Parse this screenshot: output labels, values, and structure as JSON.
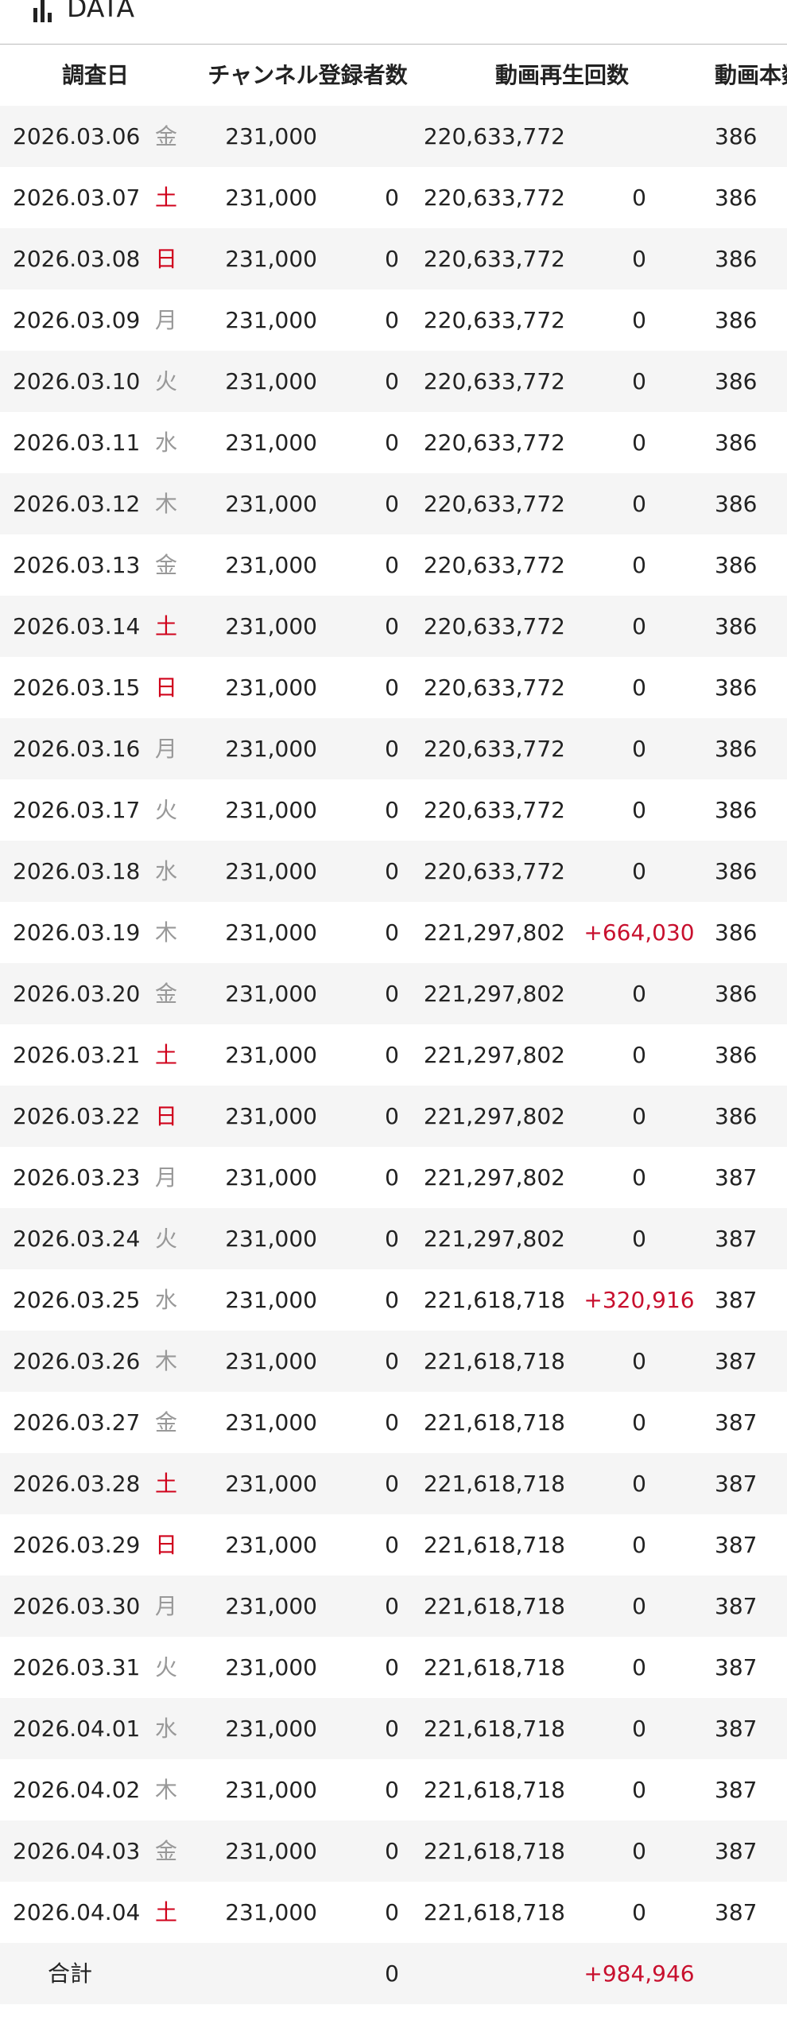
{
  "header": {
    "title": "DATA"
  },
  "table": {
    "columns": [
      "調査日",
      "チャンネル登録者数",
      "動画再生回数",
      "動画本数"
    ],
    "diff_color": "#c8102e",
    "rows": [
      {
        "date": "2026.03.06",
        "weekday": "金",
        "weekday_color": "#999999",
        "subscribers": "231,000",
        "subscribers_diff": null,
        "views": "220,633,772",
        "views_diff": null,
        "videos": "386"
      },
      {
        "date": "2026.03.07",
        "weekday": "土",
        "weekday_color": "#d0021b",
        "subscribers": "231,000",
        "subscribers_diff": "0",
        "views": "220,633,772",
        "views_diff": "0",
        "videos": "386"
      },
      {
        "date": "2026.03.08",
        "weekday": "日",
        "weekday_color": "#d0021b",
        "subscribers": "231,000",
        "subscribers_diff": "0",
        "views": "220,633,772",
        "views_diff": "0",
        "videos": "386"
      },
      {
        "date": "2026.03.09",
        "weekday": "月",
        "weekday_color": "#999999",
        "subscribers": "231,000",
        "subscribers_diff": "0",
        "views": "220,633,772",
        "views_diff": "0",
        "videos": "386"
      },
      {
        "date": "2026.03.10",
        "weekday": "火",
        "weekday_color": "#999999",
        "subscribers": "231,000",
        "subscribers_diff": "0",
        "views": "220,633,772",
        "views_diff": "0",
        "videos": "386"
      },
      {
        "date": "2026.03.11",
        "weekday": "水",
        "weekday_color": "#999999",
        "subscribers": "231,000",
        "subscribers_diff": "0",
        "views": "220,633,772",
        "views_diff": "0",
        "videos": "386"
      },
      {
        "date": "2026.03.12",
        "weekday": "木",
        "weekday_color": "#999999",
        "subscribers": "231,000",
        "subscribers_diff": "0",
        "views": "220,633,772",
        "views_diff": "0",
        "videos": "386"
      },
      {
        "date": "2026.03.13",
        "weekday": "金",
        "weekday_color": "#999999",
        "subscribers": "231,000",
        "subscribers_diff": "0",
        "views": "220,633,772",
        "views_diff": "0",
        "videos": "386"
      },
      {
        "date": "2026.03.14",
        "weekday": "土",
        "weekday_color": "#d0021b",
        "subscribers": "231,000",
        "subscribers_diff": "0",
        "views": "220,633,772",
        "views_diff": "0",
        "videos": "386"
      },
      {
        "date": "2026.03.15",
        "weekday": "日",
        "weekday_color": "#d0021b",
        "subscribers": "231,000",
        "subscribers_diff": "0",
        "views": "220,633,772",
        "views_diff": "0",
        "videos": "386"
      },
      {
        "date": "2026.03.16",
        "weekday": "月",
        "weekday_color": "#999999",
        "subscribers": "231,000",
        "subscribers_diff": "0",
        "views": "220,633,772",
        "views_diff": "0",
        "videos": "386"
      },
      {
        "date": "2026.03.17",
        "weekday": "火",
        "weekday_color": "#999999",
        "subscribers": "231,000",
        "subscribers_diff": "0",
        "views": "220,633,772",
        "views_diff": "0",
        "videos": "386"
      },
      {
        "date": "2026.03.18",
        "weekday": "水",
        "weekday_color": "#999999",
        "subscribers": "231,000",
        "subscribers_diff": "0",
        "views": "220,633,772",
        "views_diff": "0",
        "videos": "386"
      },
      {
        "date": "2026.03.19",
        "weekday": "木",
        "weekday_color": "#999999",
        "subscribers": "231,000",
        "subscribers_diff": "0",
        "views": "221,297,802",
        "views_diff": "+664,030",
        "videos": "386"
      },
      {
        "date": "2026.03.20",
        "weekday": "金",
        "weekday_color": "#999999",
        "subscribers": "231,000",
        "subscribers_diff": "0",
        "views": "221,297,802",
        "views_diff": "0",
        "videos": "386"
      },
      {
        "date": "2026.03.21",
        "weekday": "土",
        "weekday_color": "#d0021b",
        "subscribers": "231,000",
        "subscribers_diff": "0",
        "views": "221,297,802",
        "views_diff": "0",
        "videos": "386"
      },
      {
        "date": "2026.03.22",
        "weekday": "日",
        "weekday_color": "#d0021b",
        "subscribers": "231,000",
        "subscribers_diff": "0",
        "views": "221,297,802",
        "views_diff": "0",
        "videos": "386"
      },
      {
        "date": "2026.03.23",
        "weekday": "月",
        "weekday_color": "#999999",
        "subscribers": "231,000",
        "subscribers_diff": "0",
        "views": "221,297,802",
        "views_diff": "0",
        "videos": "387"
      },
      {
        "date": "2026.03.24",
        "weekday": "火",
        "weekday_color": "#999999",
        "subscribers": "231,000",
        "subscribers_diff": "0",
        "views": "221,297,802",
        "views_diff": "0",
        "videos": "387"
      },
      {
        "date": "2026.03.25",
        "weekday": "水",
        "weekday_color": "#999999",
        "subscribers": "231,000",
        "subscribers_diff": "0",
        "views": "221,618,718",
        "views_diff": "+320,916",
        "videos": "387"
      },
      {
        "date": "2026.03.26",
        "weekday": "木",
        "weekday_color": "#999999",
        "subscribers": "231,000",
        "subscribers_diff": "0",
        "views": "221,618,718",
        "views_diff": "0",
        "videos": "387"
      },
      {
        "date": "2026.03.27",
        "weekday": "金",
        "weekday_color": "#999999",
        "subscribers": "231,000",
        "subscribers_diff": "0",
        "views": "221,618,718",
        "views_diff": "0",
        "videos": "387"
      },
      {
        "date": "2026.03.28",
        "weekday": "土",
        "weekday_color": "#d0021b",
        "subscribers": "231,000",
        "subscribers_diff": "0",
        "views": "221,618,718",
        "views_diff": "0",
        "videos": "387"
      },
      {
        "date": "2026.03.29",
        "weekday": "日",
        "weekday_color": "#d0021b",
        "subscribers": "231,000",
        "subscribers_diff": "0",
        "views": "221,618,718",
        "views_diff": "0",
        "videos": "387"
      },
      {
        "date": "2026.03.30",
        "weekday": "月",
        "weekday_color": "#999999",
        "subscribers": "231,000",
        "subscribers_diff": "0",
        "views": "221,618,718",
        "views_diff": "0",
        "videos": "387"
      },
      {
        "date": "2026.03.31",
        "weekday": "火",
        "weekday_color": "#999999",
        "subscribers": "231,000",
        "subscribers_diff": "0",
        "views": "221,618,718",
        "views_diff": "0",
        "videos": "387"
      },
      {
        "date": "2026.04.01",
        "weekday": "水",
        "weekday_color": "#999999",
        "subscribers": "231,000",
        "subscribers_diff": "0",
        "views": "221,618,718",
        "views_diff": "0",
        "videos": "387"
      },
      {
        "date": "2026.04.02",
        "weekday": "木",
        "weekday_color": "#999999",
        "subscribers": "231,000",
        "subscribers_diff": "0",
        "views": "221,618,718",
        "views_diff": "0",
        "videos": "387"
      },
      {
        "date": "2026.04.03",
        "weekday": "金",
        "weekday_color": "#999999",
        "subscribers": "231,000",
        "subscribers_diff": "0",
        "views": "221,618,718",
        "views_diff": "0",
        "videos": "387"
      },
      {
        "date": "2026.04.04",
        "weekday": "土",
        "weekday_color": "#d0021b",
        "subscribers": "231,000",
        "subscribers_diff": "0",
        "views": "221,618,718",
        "views_diff": "0",
        "videos": "387"
      }
    ],
    "total": {
      "label": "合計",
      "subscribers_diff": "0",
      "views_diff": "+984,946"
    }
  }
}
